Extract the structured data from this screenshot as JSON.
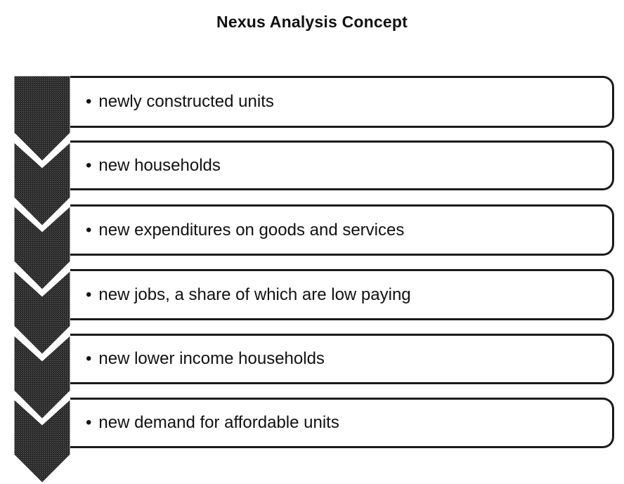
{
  "title": "Nexus Analysis Concept",
  "steps": [
    {
      "text": "newly constructed units"
    },
    {
      "text": "new households"
    },
    {
      "text": "new expenditures on goods and services"
    },
    {
      "text": "new jobs, a share of which are low paying"
    },
    {
      "text": "new lower income households"
    },
    {
      "text": "new demand for affordable units"
    }
  ],
  "bullet": "•",
  "colors": {
    "chevron": "#2b2b2b",
    "border": "#1a1a1a",
    "background": "#ffffff"
  }
}
